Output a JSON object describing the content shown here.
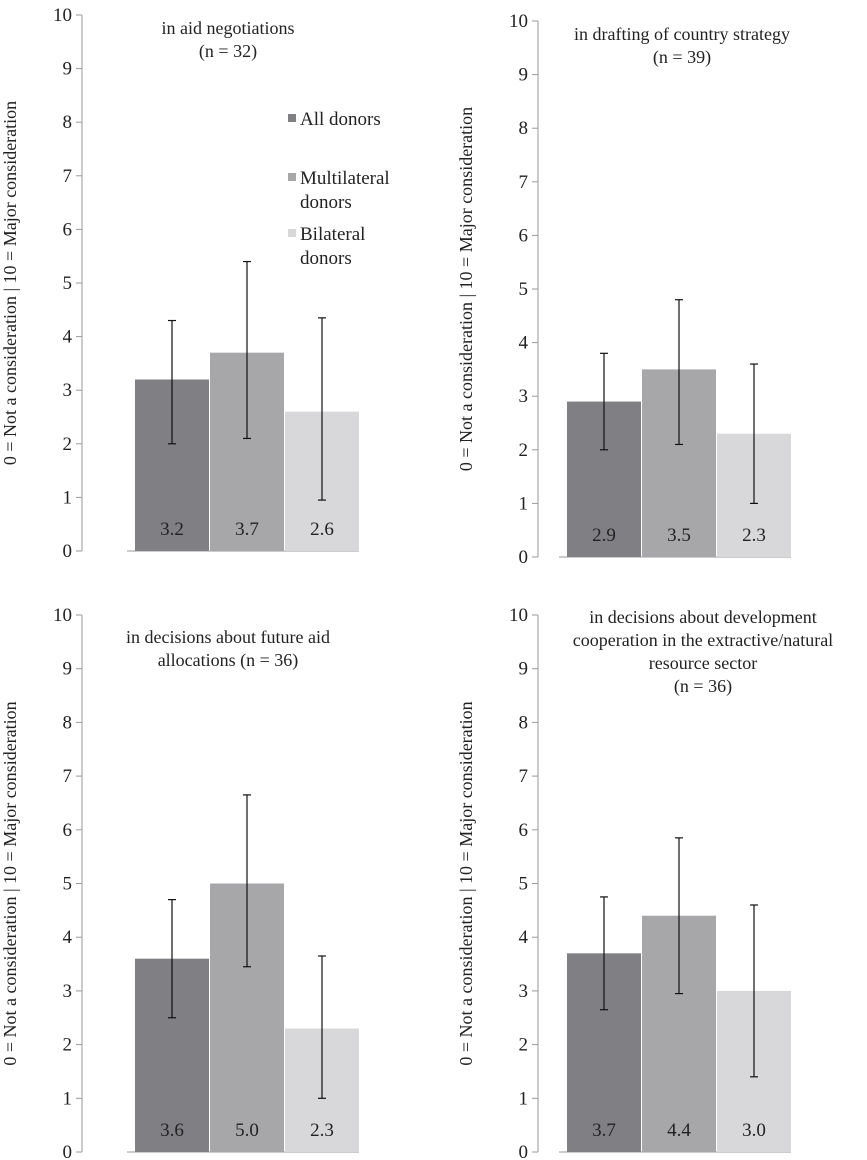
{
  "chart_data": [
    {
      "type": "bar",
      "title": [
        "in aid negotiations",
        "(n = 32)"
      ],
      "ylabel": "0 = Not a consideration | 10 = Major consideration",
      "ylim": [
        0,
        10
      ],
      "yticks": [
        "0",
        "1",
        "2",
        "3",
        "4",
        "5",
        "6",
        "7",
        "8",
        "9",
        "10"
      ],
      "series": [
        {
          "name": "All donors",
          "value": 3.2,
          "label": "3.2",
          "err_low": 2.0,
          "err_high": 4.3
        },
        {
          "name": "Multilateral donors",
          "value": 3.7,
          "label": "3.7",
          "err_low": 2.1,
          "err_high": 5.4
        },
        {
          "name": "Bilateral donors",
          "value": 2.6,
          "label": "2.6",
          "err_low": 0.95,
          "err_high": 4.35
        }
      ],
      "legend": {
        "placement": "inside-top-right",
        "entries": [
          [
            "All donors"
          ],
          [
            "Multilateral",
            "donors"
          ],
          [
            "Bilateral",
            "donors"
          ]
        ]
      }
    },
    {
      "type": "bar",
      "title": [
        "in drafting of country strategy",
        "(n = 39)"
      ],
      "ylabel": "0 = Not a consideration | 10 = Major consideration",
      "ylim": [
        0,
        10
      ],
      "yticks": [
        "0",
        "1",
        "2",
        "3",
        "4",
        "5",
        "6",
        "7",
        "8",
        "9",
        "10"
      ],
      "series": [
        {
          "name": "All donors",
          "value": 2.9,
          "label": "2.9",
          "err_low": 2.0,
          "err_high": 3.8
        },
        {
          "name": "Multilateral donors",
          "value": 3.5,
          "label": "3.5",
          "err_low": 2.1,
          "err_high": 4.8
        },
        {
          "name": "Bilateral donors",
          "value": 2.3,
          "label": "2.3",
          "err_low": 1.0,
          "err_high": 3.6
        }
      ]
    },
    {
      "type": "bar",
      "title": [
        "in decisions about future aid",
        "allocations (n = 36)"
      ],
      "ylabel": "0 = Not a consideration | 10 = Major consideration",
      "ylim": [
        0,
        10
      ],
      "yticks": [
        "0",
        "1",
        "2",
        "3",
        "4",
        "5",
        "6",
        "7",
        "8",
        "9",
        "10"
      ],
      "series": [
        {
          "name": "All donors",
          "value": 3.6,
          "label": "3.6",
          "err_low": 2.5,
          "err_high": 4.7
        },
        {
          "name": "Multilateral donors",
          "value": 5.0,
          "label": "5.0",
          "err_low": 3.45,
          "err_high": 6.65
        },
        {
          "name": "Bilateral donors",
          "value": 2.3,
          "label": "2.3",
          "err_low": 1.0,
          "err_high": 3.65
        }
      ]
    },
    {
      "type": "bar",
      "title": [
        "in decisions about development",
        "cooperation in the extractive/natural",
        "resource sector",
        "(n = 36)"
      ],
      "ylabel": "0 = Not a consideration | 10 = Major consideration",
      "ylim": [
        0,
        10
      ],
      "yticks": [
        "0",
        "1",
        "2",
        "3",
        "4",
        "5",
        "6",
        "7",
        "8",
        "9",
        "10"
      ],
      "series": [
        {
          "name": "All donors",
          "value": 3.7,
          "label": "3.7",
          "err_low": 2.65,
          "err_high": 4.75
        },
        {
          "name": "Multilateral donors",
          "value": 4.4,
          "label": "4.4",
          "err_low": 2.95,
          "err_high": 5.85
        },
        {
          "name": "Bilateral donors",
          "value": 3.0,
          "label": "3.0",
          "err_low": 1.4,
          "err_high": 4.6
        }
      ]
    }
  ],
  "colors": {
    "All donors": "#808084",
    "Multilateral donors": "#a7a7aa",
    "Bilateral donors": "#d8d8da",
    "axis": "#9a9a9a",
    "text": "#222222",
    "error_bar": "#111111"
  }
}
